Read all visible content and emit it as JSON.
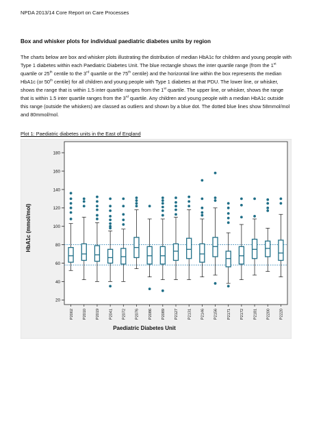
{
  "header": {
    "text": "NPDA 2013/14 Core Report on Care Processes"
  },
  "section_title": "Box and whisker plots for individual paediatric diabetes units by region",
  "paragraph": {
    "p1": "The charts below are box and whisker plots illustrating the distribution of median HbA1c for children and young people with Type 1 diabetes within each Paediatric Diabetes Unit.  The blue rectangle shows the inter quartile range (from the 1",
    "p2": " quartile or 25",
    "p3": " centile to the 3",
    "p4": " quartile or the 75",
    "p5": " centile) and the horizontal line within the box represents the median HbA1c (or 50",
    "p6": " centile) for all children and young people with Type 1 diabetes at that PDU.  The lower line, or whisker, shows the range that is within 1.5 inter quartile ranges from the 1",
    "p7": " quartile.  The upper line, or whisker, shows the range that is within 1.5 inter quartile ranges from the 3",
    "p8": " quartile.  Any children and young people with a median HbA1c outside this range (outside the whiskers) are classed as outliers and shown by a blue dot.  The dotted blue lines show 58mmol/mol and 80mmol/mol.",
    "sup_st": "st",
    "sup_th": "th",
    "sup_rd": "rd"
  },
  "plot_title": "Plot 1: Paediatric diabetes units in the East of England",
  "colors": {
    "box": "#1f6e87",
    "outlier": "#1f6e87",
    "refline": "#2a7fb0",
    "frame": "#f0f0f0"
  },
  "chart_data": {
    "type": "box",
    "xlabel": "Paediatric Diabetes Unit",
    "ylabel": "HbA1c (mmol/mol)",
    "ylim": [
      15,
      192
    ],
    "yticks": [
      20,
      40,
      60,
      80,
      100,
      120,
      140,
      160,
      180
    ],
    "reference_lines": [
      58,
      80
    ],
    "grid": false,
    "units": [
      {
        "name": "P2002",
        "min": 52,
        "q1": 61,
        "median": 68,
        "q3": 77,
        "max": 103,
        "outliers": [
          108,
          115,
          120,
          125,
          130,
          136
        ]
      },
      {
        "name": "P2010",
        "min": 42,
        "q1": 63,
        "median": 70,
        "q3": 81,
        "max": 110,
        "outliers": [
          122,
          127,
          130
        ]
      },
      {
        "name": "P2019",
        "min": 40,
        "q1": 62,
        "median": 69,
        "q3": 79,
        "max": 104,
        "outliers": [
          108,
          112,
          118,
          122,
          127,
          132
        ]
      },
      {
        "name": "P2041",
        "min": 40,
        "q1": 60,
        "median": 66,
        "q3": 75,
        "max": 95,
        "outliers": [
          35,
          98,
          100,
          103,
          107,
          111,
          117,
          122,
          130
        ]
      },
      {
        "name": "P2072",
        "min": 40,
        "q1": 59,
        "median": 67,
        "q3": 76,
        "max": 97,
        "outliers": [
          102,
          107,
          113,
          122,
          130
        ]
      },
      {
        "name": "P2076",
        "min": 54,
        "q1": 66,
        "median": 77,
        "q3": 88,
        "max": 118,
        "outliers": [
          122,
          125,
          128,
          131
        ]
      },
      {
        "name": "P2086",
        "min": 45,
        "q1": 59,
        "median": 68,
        "q3": 78,
        "max": 108,
        "outliers": [
          32,
          122
        ]
      },
      {
        "name": "P2089",
        "min": 42,
        "q1": 59,
        "median": 68,
        "q3": 78,
        "max": 108,
        "outliers": [
          30,
          112,
          117,
          121,
          125,
          128,
          131
        ]
      },
      {
        "name": "P2127",
        "min": 42,
        "q1": 63,
        "median": 73,
        "q3": 81,
        "max": 110,
        "outliers": [
          113,
          118,
          122,
          126,
          131
        ]
      },
      {
        "name": "P2131",
        "min": 42,
        "q1": 65,
        "median": 75,
        "q3": 87,
        "max": 118,
        "outliers": [
          122,
          127,
          132
        ]
      },
      {
        "name": "P2146",
        "min": 45,
        "q1": 61,
        "median": 70,
        "q3": 81,
        "max": 108,
        "outliers": [
          112,
          115,
          120,
          130,
          150
        ]
      },
      {
        "name": "P2156",
        "min": 47,
        "q1": 67,
        "median": 78,
        "q3": 88,
        "max": 120,
        "outliers": [
          38,
          128,
          131,
          158
        ]
      },
      {
        "name": "P2171",
        "min": 38,
        "q1": 56,
        "median": 65,
        "q3": 73,
        "max": 93,
        "outliers": [
          35,
          104,
          109,
          114,
          120,
          125
        ]
      },
      {
        "name": "P2172",
        "min": 42,
        "q1": 59,
        "median": 68,
        "q3": 78,
        "max": 102,
        "outliers": [
          110,
          123,
          130
        ]
      },
      {
        "name": "P2181",
        "min": 47,
        "q1": 65,
        "median": 75,
        "q3": 86,
        "max": 108,
        "outliers": [
          111,
          130
        ]
      },
      {
        "name": "P2200",
        "min": 51,
        "q1": 67,
        "median": 76,
        "q3": 84,
        "max": 98,
        "outliers": [
          117,
          120,
          125,
          129
        ]
      },
      {
        "name": "P2220",
        "min": 45,
        "q1": 63,
        "median": 71,
        "q3": 85,
        "max": 113,
        "outliers": [
          125,
          130
        ]
      }
    ]
  }
}
